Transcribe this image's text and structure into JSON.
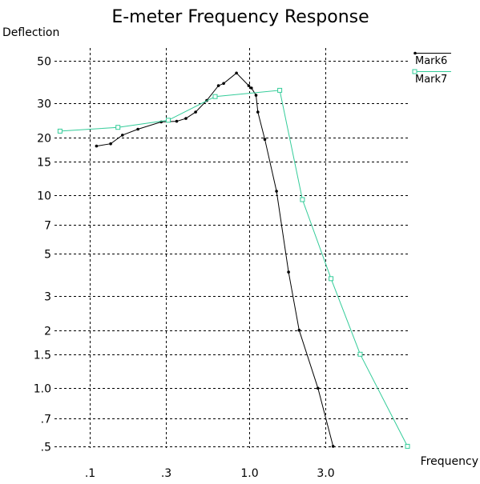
{
  "chart_data": {
    "type": "line",
    "title": "E-meter Frequency Response",
    "xlabel": "Frequency",
    "ylabel": "Deflection",
    "x_scale": "log",
    "y_scale": "log",
    "xlim": [
      0.06,
      10.2
    ],
    "ylim": [
      0.49,
      58
    ],
    "grid": true,
    "legend_position": "top-right",
    "x_ticks": [
      {
        "value": 0.1,
        "label": ".1"
      },
      {
        "value": 0.3,
        "label": ".3"
      },
      {
        "value": 1.0,
        "label": "1.0"
      },
      {
        "value": 3.0,
        "label": "3.0"
      }
    ],
    "y_ticks": [
      {
        "value": 50,
        "label": "50"
      },
      {
        "value": 30,
        "label": "30"
      },
      {
        "value": 20,
        "label": "20"
      },
      {
        "value": 15,
        "label": "15"
      },
      {
        "value": 10,
        "label": "10"
      },
      {
        "value": 7,
        "label": "7"
      },
      {
        "value": 5,
        "label": "5"
      },
      {
        "value": 3,
        "label": "3"
      },
      {
        "value": 2,
        "label": "2"
      },
      {
        "value": 1.5,
        "label": "1.5"
      },
      {
        "value": 1.0,
        "label": "1.0"
      },
      {
        "value": 0.7,
        "label": ".7"
      },
      {
        "value": 0.5,
        "label": ".5"
      }
    ],
    "series": [
      {
        "name": "Mark6",
        "color": "#000000",
        "marker": "dot",
        "points": [
          {
            "x": 0.11,
            "y": 18
          },
          {
            "x": 0.135,
            "y": 18.5
          },
          {
            "x": 0.16,
            "y": 20.5
          },
          {
            "x": 0.2,
            "y": 22
          },
          {
            "x": 0.28,
            "y": 24
          },
          {
            "x": 0.35,
            "y": 24.2
          },
          {
            "x": 0.4,
            "y": 25
          },
          {
            "x": 0.46,
            "y": 27
          },
          {
            "x": 0.54,
            "y": 31
          },
          {
            "x": 0.64,
            "y": 37
          },
          {
            "x": 0.69,
            "y": 38
          },
          {
            "x": 0.83,
            "y": 43
          },
          {
            "x": 0.99,
            "y": 37
          },
          {
            "x": 1.03,
            "y": 36
          },
          {
            "x": 1.1,
            "y": 33
          },
          {
            "x": 1.13,
            "y": 27
          },
          {
            "x": 1.25,
            "y": 19.5
          },
          {
            "x": 1.48,
            "y": 10.5
          },
          {
            "x": 1.76,
            "y": 4
          },
          {
            "x": 2.05,
            "y": 2.0
          },
          {
            "x": 2.69,
            "y": 1.0
          },
          {
            "x": 3.35,
            "y": 0.5
          }
        ]
      },
      {
        "name": "Mark7",
        "color": "#33cc99",
        "marker": "square",
        "points": [
          {
            "x": 0.065,
            "y": 21.5
          },
          {
            "x": 0.15,
            "y": 22.5
          },
          {
            "x": 0.31,
            "y": 24.5
          },
          {
            "x": 0.61,
            "y": 32.5
          },
          {
            "x": 1.55,
            "y": 35
          },
          {
            "x": 2.15,
            "y": 9.5
          },
          {
            "x": 3.25,
            "y": 3.7
          },
          {
            "x": 4.95,
            "y": 1.5
          },
          {
            "x": 9.8,
            "y": 0.5
          }
        ]
      }
    ]
  }
}
